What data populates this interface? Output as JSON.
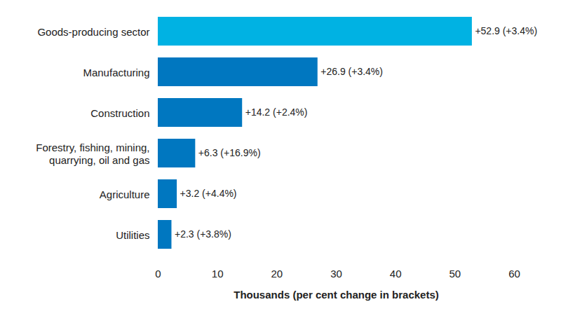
{
  "chart_data": {
    "type": "bar",
    "orientation": "horizontal",
    "categories": [
      "Goods-producing sector",
      "Manufacturing",
      "Construction",
      "Forestry, fishing, mining,\nquarrying, oil and gas",
      "Agriculture",
      "Utilities"
    ],
    "values": [
      52.9,
      26.9,
      14.2,
      6.3,
      3.2,
      2.3
    ],
    "value_labels": [
      "+52.9 (+3.4%)",
      "+26.9 (+3.4%)",
      "+14.2 (+2.4%)",
      "+6.3 (+16.9%)",
      "+3.2 (+4.4%)",
      "+2.3 (+3.8%)"
    ],
    "colors": [
      "#00b2e3",
      "#0077c0",
      "#0077c0",
      "#0077c0",
      "#0077c0",
      "#0077c0"
    ],
    "xlabel": "Thousands (per cent change in brackets)",
    "xlim": [
      0,
      60
    ],
    "xticks": [
      0,
      10,
      20,
      30,
      40,
      50,
      60
    ],
    "data_labels": true,
    "grid": false
  }
}
